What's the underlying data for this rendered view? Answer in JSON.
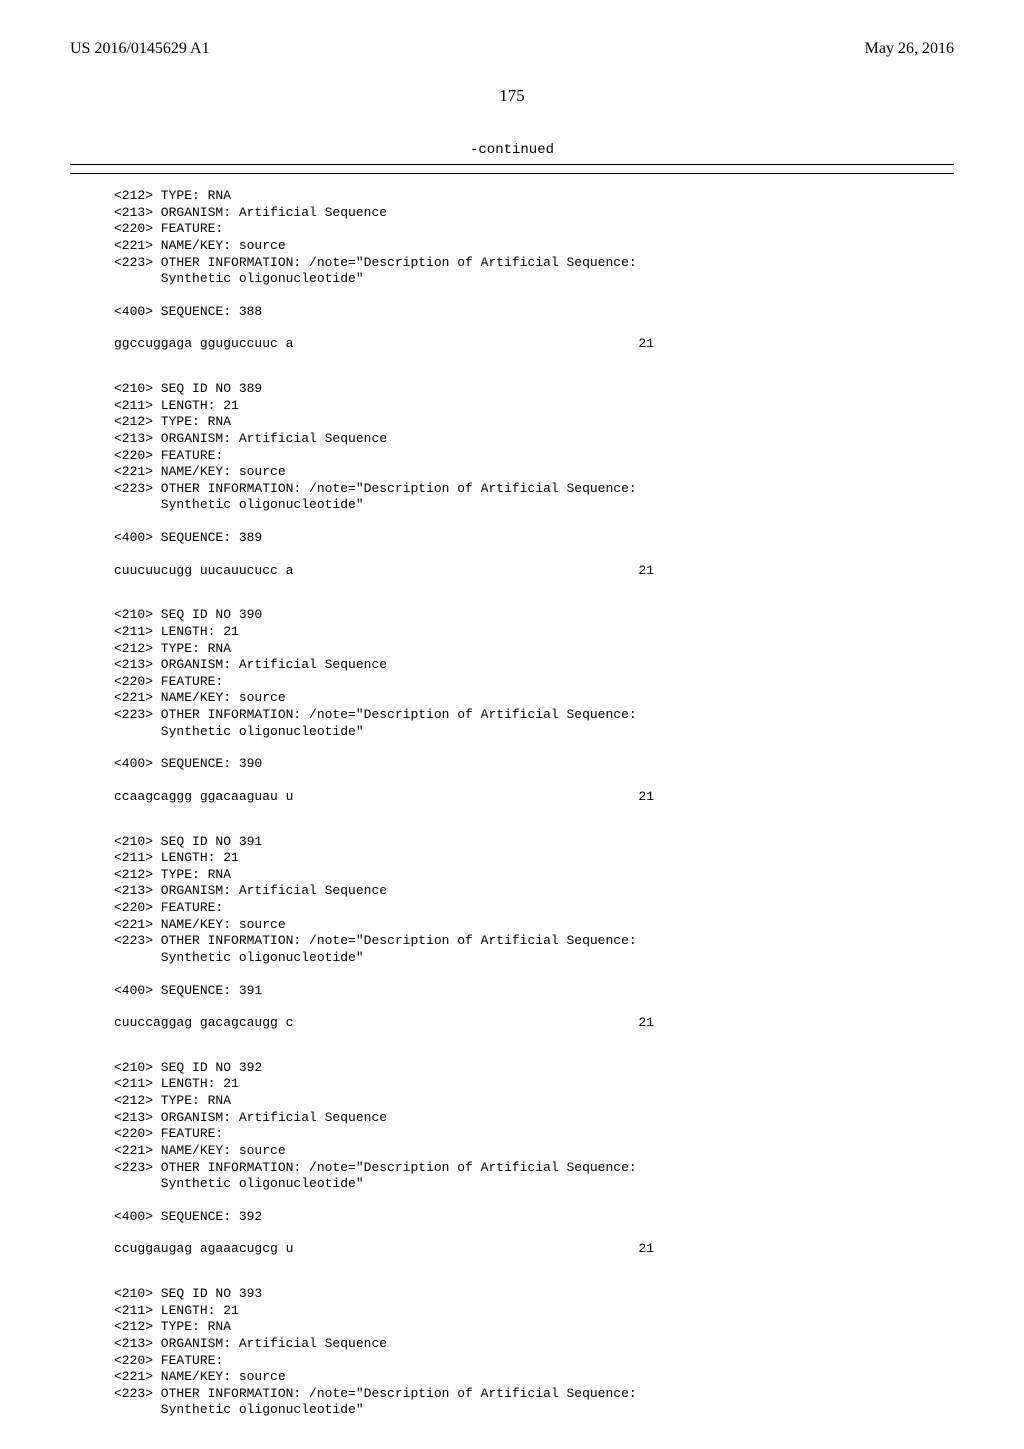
{
  "header": {
    "publication_number": "US 2016/0145629 A1",
    "publication_date": "May 26, 2016"
  },
  "page_number": "175",
  "continued_label": "-continued",
  "entries": [
    {
      "pre": [
        "<212> TYPE: RNA",
        "<213> ORGANISM: Artificial Sequence",
        "<220> FEATURE:",
        "<221> NAME/KEY: source",
        "<223> OTHER INFORMATION: /note=\"Description of Artificial Sequence:",
        "      Synthetic oligonucleotide\""
      ],
      "seq_label": "<400> SEQUENCE: 388",
      "seq_text": "ggccuggaga gguguccuuc a",
      "seq_len": "21"
    },
    {
      "pre": [
        "<210> SEQ ID NO 389",
        "<211> LENGTH: 21",
        "<212> TYPE: RNA",
        "<213> ORGANISM: Artificial Sequence",
        "<220> FEATURE:",
        "<221> NAME/KEY: source",
        "<223> OTHER INFORMATION: /note=\"Description of Artificial Sequence:",
        "      Synthetic oligonucleotide\""
      ],
      "seq_label": "<400> SEQUENCE: 389",
      "seq_text": "cuucuucugg uucauucucc a",
      "seq_len": "21"
    },
    {
      "pre": [
        "<210> SEQ ID NO 390",
        "<211> LENGTH: 21",
        "<212> TYPE: RNA",
        "<213> ORGANISM: Artificial Sequence",
        "<220> FEATURE:",
        "<221> NAME/KEY: source",
        "<223> OTHER INFORMATION: /note=\"Description of Artificial Sequence:",
        "      Synthetic oligonucleotide\""
      ],
      "seq_label": "<400> SEQUENCE: 390",
      "seq_text": "ccaagcaggg ggacaaguau u",
      "seq_len": "21"
    },
    {
      "pre": [
        "<210> SEQ ID NO 391",
        "<211> LENGTH: 21",
        "<212> TYPE: RNA",
        "<213> ORGANISM: Artificial Sequence",
        "<220> FEATURE:",
        "<221> NAME/KEY: source",
        "<223> OTHER INFORMATION: /note=\"Description of Artificial Sequence:",
        "      Synthetic oligonucleotide\""
      ],
      "seq_label": "<400> SEQUENCE: 391",
      "seq_text": "cuuccaggag gacagcaugg c",
      "seq_len": "21"
    },
    {
      "pre": [
        "<210> SEQ ID NO 392",
        "<211> LENGTH: 21",
        "<212> TYPE: RNA",
        "<213> ORGANISM: Artificial Sequence",
        "<220> FEATURE:",
        "<221> NAME/KEY: source",
        "<223> OTHER INFORMATION: /note=\"Description of Artificial Sequence:",
        "      Synthetic oligonucleotide\""
      ],
      "seq_label": "<400> SEQUENCE: 392",
      "seq_text": "ccuggaugag agaaacugcg u",
      "seq_len": "21"
    },
    {
      "pre": [
        "<210> SEQ ID NO 393",
        "<211> LENGTH: 21",
        "<212> TYPE: RNA",
        "<213> ORGANISM: Artificial Sequence",
        "<220> FEATURE:",
        "<221> NAME/KEY: source",
        "<223> OTHER INFORMATION: /note=\"Description of Artificial Sequence:",
        "      Synthetic oligonucleotide\""
      ],
      "seq_label": null,
      "seq_text": null,
      "seq_len": null
    }
  ]
}
